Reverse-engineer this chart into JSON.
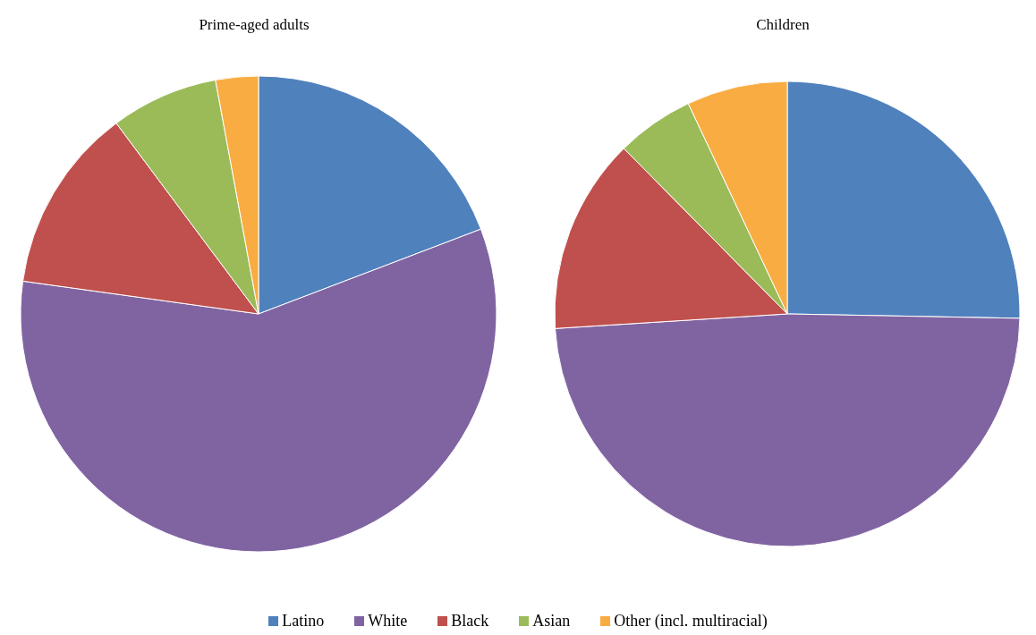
{
  "chart_data": [
    {
      "type": "pie",
      "title": "Prime-aged adults",
      "categories": [
        "Latino",
        "White",
        "Black",
        "Asian",
        "Other (incl. multiracial)"
      ],
      "values": [
        19.2,
        58.0,
        12.6,
        7.3,
        2.9
      ],
      "colors": [
        "#4f81bd",
        "#8064a2",
        "#c0504d",
        "#9bbb59",
        "#f9ac41"
      ],
      "legend": "bottom"
    },
    {
      "type": "pie",
      "title": "Children",
      "categories": [
        null,
        null,
        null,
        null,
        null
      ],
      "values": [
        25.3,
        48.7,
        13.6,
        5.4,
        7.0
      ],
      "colors": [
        "#4f81bd",
        "#8064a2",
        "#c0504d",
        "#9bbb59",
        "#f9ac41"
      ]
    }
  ]
}
